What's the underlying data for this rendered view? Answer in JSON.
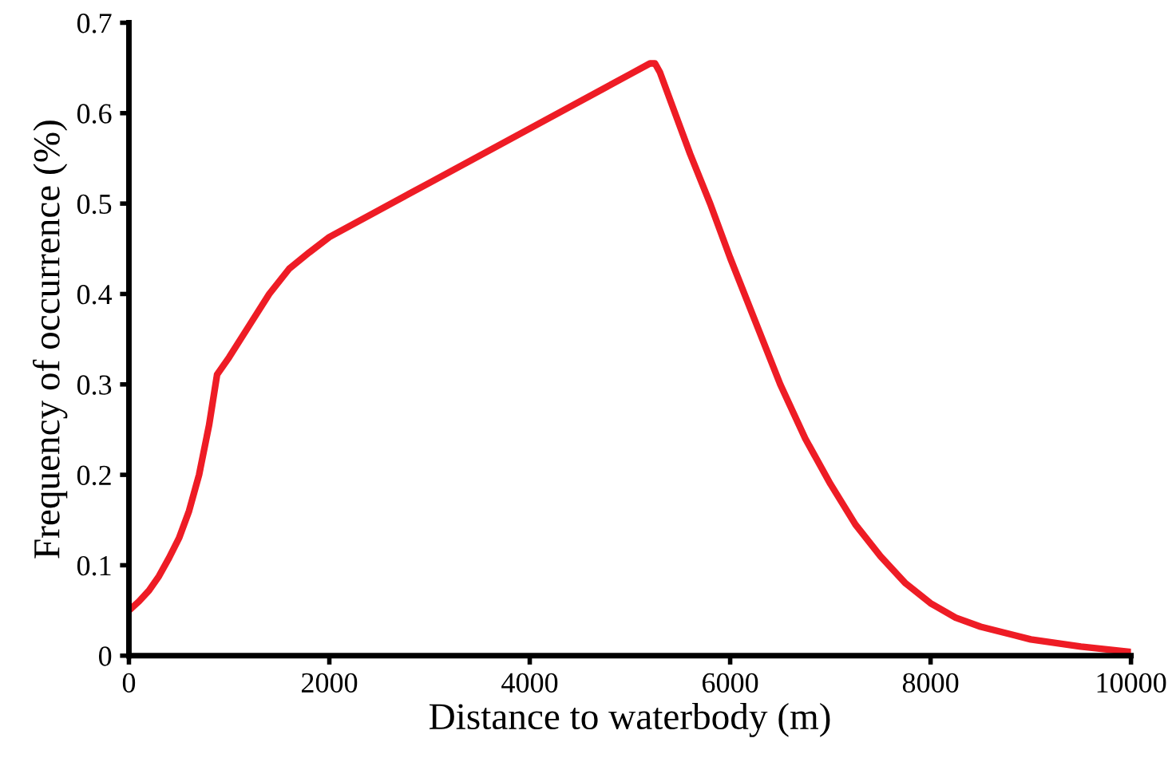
{
  "chart_data": {
    "type": "line",
    "xlabel": "Distance to waterbody (m)",
    "ylabel": "Frequency of occurrence (%)",
    "series": [
      {
        "color": "#ee1c25",
        "x": [
          0,
          100,
          200,
          300,
          400,
          500,
          600,
          700,
          800,
          880,
          1000,
          1200,
          1400,
          1600,
          1800,
          2000,
          3000,
          4000,
          5000,
          5200,
          5250,
          5300,
          5450,
          5600,
          5800,
          6000,
          6250,
          6500,
          6750,
          7000,
          7250,
          7500,
          7750,
          8000,
          8250,
          8500,
          9000,
          9500,
          10000
        ],
        "values": [
          0.05,
          0.06,
          0.072,
          0.088,
          0.108,
          0.13,
          0.16,
          0.2,
          0.255,
          0.311,
          0.33,
          0.365,
          0.4,
          0.428,
          0.446,
          0.463,
          0.523,
          0.583,
          0.643,
          0.655,
          0.655,
          0.645,
          0.6,
          0.555,
          0.5,
          0.44,
          0.37,
          0.3,
          0.24,
          0.19,
          0.145,
          0.11,
          0.08,
          0.058,
          0.042,
          0.032,
          0.018,
          0.01,
          0.004
        ]
      }
    ],
    "xlim": [
      0,
      10000
    ],
    "xticks": [
      0,
      2000,
      4000,
      6000,
      8000,
      10000
    ],
    "ylim": [
      0,
      0.7
    ],
    "yticks": [
      0,
      0.1,
      0.2,
      0.3,
      0.4,
      0.5,
      0.6,
      0.7
    ],
    "grid": false,
    "legend": false,
    "marker": "none",
    "line_style": "solid"
  }
}
